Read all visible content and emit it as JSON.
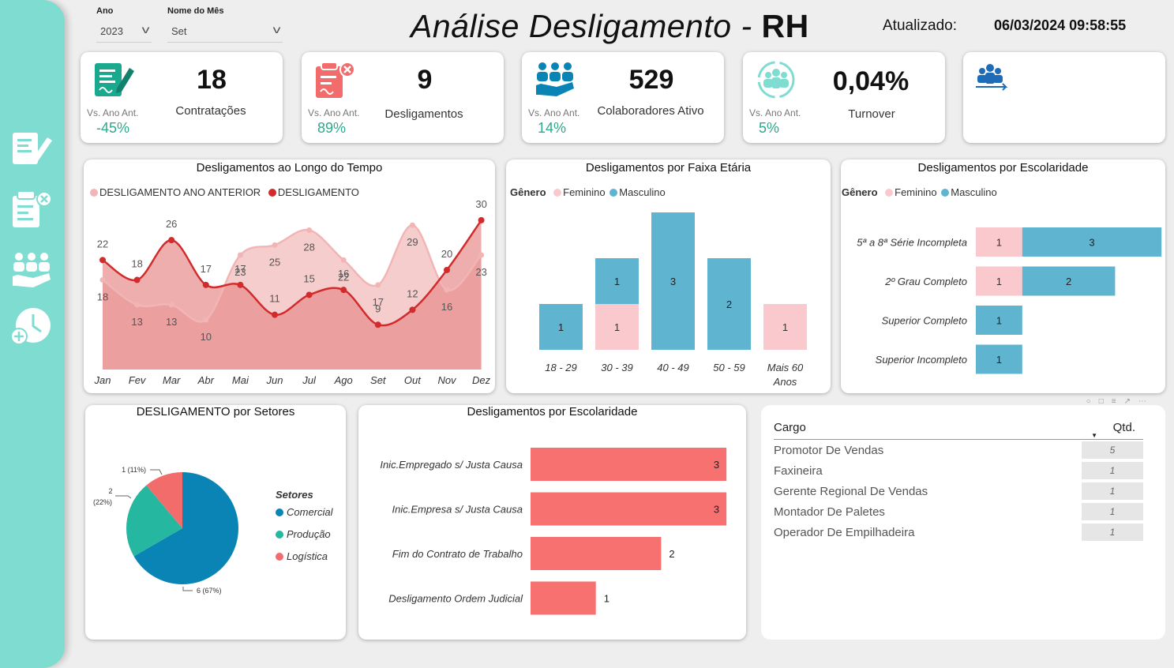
{
  "filters": {
    "year": {
      "label": "Ano",
      "value": "2023"
    },
    "month": {
      "label": "Nome do Mês",
      "value": "Set"
    }
  },
  "header": {
    "title_main": "Análise Desligamento -",
    "title_bold": "RH",
    "updated_label": "Atualizado:",
    "updated_value": "06/03/2024 09:58:55"
  },
  "sidebar": {
    "icons": [
      "document-edit-icon",
      "document-remove-icon",
      "team-icon",
      "clock-icon"
    ]
  },
  "kpis": [
    {
      "value": "18",
      "label": "Contratações",
      "vs_label": "Vs. Ano Ant.",
      "vs_value": "-45%",
      "icon": "contract-sign-icon"
    },
    {
      "value": "9",
      "label": "Desligamentos",
      "vs_label": "Vs. Ano Ant.",
      "vs_value": "89%",
      "icon": "document-remove-icon"
    },
    {
      "value": "529",
      "label": "Colaboradores Ativo",
      "vs_label": "Vs. Ano Ant.",
      "vs_value": "14%",
      "icon": "team-hands-icon"
    },
    {
      "value": "0,04%",
      "label": "Turnover",
      "vs_label": "Vs. Ano Ant.",
      "vs_value": "5%",
      "icon": "team-cycle-icon"
    }
  ],
  "colors": {
    "teal": "#7fdcd0",
    "dark_red": "#d12b2b",
    "light_red": "#f2b5b5",
    "pink": "#f9c9cd",
    "blue": "#5fb4d0",
    "coral": "#f87171",
    "pie_blue": "#0a84b4",
    "pie_green": "#26b7a1",
    "pie_red": "#f26c6c",
    "green_text": "#2fa88d"
  },
  "chart_data": [
    {
      "type": "area",
      "title": "Desligamentos ao Longo do Tempo",
      "categories": [
        "Jan",
        "Fev",
        "Mar",
        "Abr",
        "Mai",
        "Jun",
        "Jul",
        "Ago",
        "Set",
        "Out",
        "Nov",
        "Dez"
      ],
      "series": [
        {
          "name": "DESLIGAMENTO ANO ANTERIOR",
          "values": [
            18,
            13,
            13,
            10,
            23,
            25,
            28,
            22,
            17,
            29,
            16,
            23
          ]
        },
        {
          "name": "DESLIGAMENTO",
          "values": [
            22,
            18,
            26,
            17,
            17,
            11,
            15,
            16,
            9,
            12,
            20,
            30
          ]
        }
      ],
      "ylim": [
        0,
        33
      ]
    },
    {
      "type": "bar",
      "title": "Desligamentos por Faixa Etária",
      "legend_title": "Gênero",
      "categories": [
        "18 - 29",
        "30 - 39",
        "40 - 49",
        "50 - 59",
        "Mais 60 Anos"
      ],
      "series": [
        {
          "name": "Feminino",
          "values": [
            0,
            1,
            0,
            0,
            1
          ]
        },
        {
          "name": "Masculino",
          "values": [
            1,
            1,
            3,
            2,
            0
          ]
        }
      ]
    },
    {
      "type": "bar",
      "title": "Desligamentos por Escolaridade",
      "legend_title": "Gênero",
      "categories": [
        "5ª a 8ª Série Incompleta",
        "2º Grau Completo",
        "Superior Completo",
        "Superior Incompleto"
      ],
      "series": [
        {
          "name": "Feminino",
          "values": [
            1,
            1,
            0,
            0
          ]
        },
        {
          "name": "Masculino",
          "values": [
            3,
            2,
            1,
            1
          ]
        }
      ]
    },
    {
      "type": "pie",
      "title": "DESLIGAMENTO por Setores",
      "legend_title": "Setores",
      "categories": [
        "Comercial",
        "Produção",
        "Logística"
      ],
      "values": [
        6,
        2,
        1
      ],
      "labels": [
        "6 (67%)",
        "2 (22%)",
        "1 (11%)"
      ]
    },
    {
      "type": "bar",
      "title": "Desligamentos por Escolaridade",
      "categories": [
        "Inic.Empregado s/ Justa Causa",
        "Inic.Empresa s/ Justa Causa",
        "Fim do Contrato de Trabalho",
        "Desligamento Ordem Judicial"
      ],
      "values": [
        3,
        3,
        2,
        1
      ]
    },
    {
      "type": "table",
      "columns": [
        "Cargo",
        "Qtd."
      ],
      "rows": [
        [
          "Promotor De Vendas",
          "5"
        ],
        [
          "Faxineira",
          "1"
        ],
        [
          "Gerente Regional De Vendas",
          "1"
        ],
        [
          "Montador De Paletes",
          "1"
        ],
        [
          "Operador De Empilhadeira",
          "1"
        ]
      ]
    }
  ]
}
